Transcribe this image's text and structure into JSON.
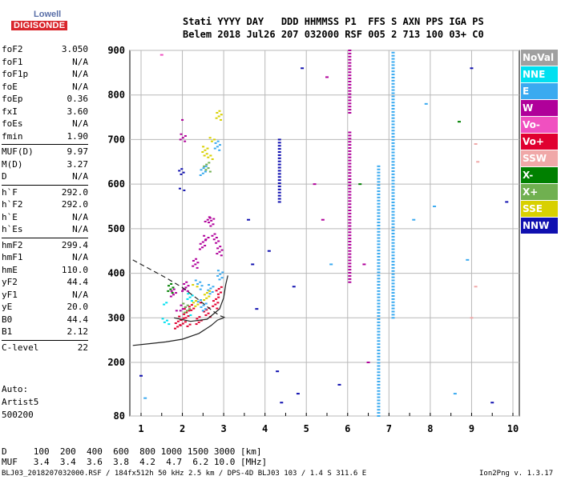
{
  "logo": {
    "line1": "Lowell",
    "line2": "DIGISONDE"
  },
  "header": {
    "line1": "Stati YYYY DAY   DDD HHMMSS P1  FFS S AXN PPS IGA PS",
    "line2": "Belem 2018 Jul26 207 032000 RSF 005 2 713 100 03+ C0"
  },
  "params_group1": [
    {
      "name": "foF2",
      "value": "3.050"
    },
    {
      "name": "foF1",
      "value": "N/A"
    },
    {
      "name": "foF1p",
      "value": "N/A"
    },
    {
      "name": "foE",
      "value": "N/A"
    },
    {
      "name": "foEp",
      "value": "0.36"
    },
    {
      "name": "fxI",
      "value": "3.60"
    },
    {
      "name": "foEs",
      "value": "N/A"
    },
    {
      "name": "fmin",
      "value": "1.90"
    }
  ],
  "params_group2": [
    {
      "name": "MUF(D)",
      "value": "9.97"
    },
    {
      "name": "M(D)",
      "value": "3.27"
    },
    {
      "name": "D",
      "value": "N/A"
    }
  ],
  "params_group3": [
    {
      "name": "h`F",
      "value": "292.0"
    },
    {
      "name": "h`F2",
      "value": "292.0"
    },
    {
      "name": "h`E",
      "value": "N/A"
    },
    {
      "name": "h`Es",
      "value": "N/A"
    }
  ],
  "params_group4": [
    {
      "name": "hmF2",
      "value": "299.4"
    },
    {
      "name": "hmF1",
      "value": "N/A"
    },
    {
      "name": "hmE",
      "value": "110.0"
    },
    {
      "name": "yF2",
      "value": "44.4"
    },
    {
      "name": "yF1",
      "value": "N/A"
    },
    {
      "name": "yE",
      "value": "20.0"
    },
    {
      "name": "B0",
      "value": "44.4"
    },
    {
      "name": "B1",
      "value": "2.12"
    }
  ],
  "params_group5": [
    {
      "name": "C-level",
      "value": "22"
    }
  ],
  "extra": {
    "auto": "Auto:",
    "artist": "Artist5",
    "version": "500200"
  },
  "legend": [
    {
      "label": "NoVal",
      "color": "#a0a0a0"
    },
    {
      "label": "NNE",
      "color": "#00e0f0"
    },
    {
      "label": "E",
      "color": "#3aaaf0"
    },
    {
      "label": "W",
      "color": "#b0009a"
    },
    {
      "label": "Vo-",
      "color": "#f050c0"
    },
    {
      "label": "Vo+",
      "color": "#e00030"
    },
    {
      "label": "SSW",
      "color": "#f0a8a8"
    },
    {
      "label": "X-",
      "color": "#008000"
    },
    {
      "label": "X+",
      "color": "#70b050"
    },
    {
      "label": "SSE",
      "color": "#d8d000"
    },
    {
      "label": "NNW",
      "color": "#1010b0"
    }
  ],
  "chart_data": {
    "type": "scatter",
    "title": "",
    "xlabel": "",
    "ylabel": "",
    "xlim": [
      0.8,
      10.0
    ],
    "ylim": [
      80,
      900
    ],
    "x_ticks": [
      "1",
      "2",
      "3",
      "4",
      "5",
      "6",
      "7",
      "8",
      "9",
      "10"
    ],
    "y_ticks": [
      "900",
      "800",
      "700",
      "600",
      "500",
      "400",
      "300",
      "200",
      "80"
    ],
    "grid": true,
    "trace_profile": {
      "name": "",
      "points": [
        [
          0.8,
          238
        ],
        [
          1.2,
          242
        ],
        [
          1.6,
          246
        ],
        [
          2.0,
          252
        ],
        [
          2.4,
          265
        ],
        [
          2.7,
          283
        ],
        [
          2.85,
          295
        ],
        [
          3.0,
          300
        ]
      ]
    },
    "trace_topside": {
      "name": "",
      "points": [
        [
          0.8,
          430
        ],
        [
          1.2,
          410
        ],
        [
          1.6,
          390
        ],
        [
          2.0,
          368
        ],
        [
          2.4,
          340
        ],
        [
          2.7,
          318
        ],
        [
          2.9,
          305
        ],
        [
          3.05,
          300
        ]
      ]
    },
    "trace_curve": {
      "name": "",
      "points": [
        [
          1.8,
          300
        ],
        [
          2.2,
          292
        ],
        [
          2.6,
          297
        ],
        [
          2.9,
          320
        ],
        [
          3.0,
          345
        ],
        [
          3.05,
          375
        ],
        [
          3.1,
          395
        ]
      ]
    },
    "f2_echoes": [
      {
        "x": 1.9,
        "y": 300,
        "c": "#e00030"
      },
      {
        "x": 2.0,
        "y": 295,
        "c": "#e00030"
      },
      {
        "x": 2.1,
        "y": 300,
        "c": "#e00030"
      },
      {
        "x": 2.2,
        "y": 305,
        "c": "#e00030"
      },
      {
        "x": 2.4,
        "y": 310,
        "c": "#e00030"
      },
      {
        "x": 2.6,
        "y": 318,
        "c": "#e00030"
      },
      {
        "x": 2.8,
        "y": 330,
        "c": "#e00030"
      },
      {
        "x": 2.9,
        "y": 345,
        "c": "#e00030"
      },
      {
        "x": 2.0,
        "y": 340,
        "c": "#b0009a"
      },
      {
        "x": 2.1,
        "y": 380,
        "c": "#b0009a"
      },
      {
        "x": 2.3,
        "y": 420,
        "c": "#b0009a"
      },
      {
        "x": 2.5,
        "y": 450,
        "c": "#b0009a"
      },
      {
        "x": 2.6,
        "y": 500,
        "c": "#b0009a"
      },
      {
        "x": 2.7,
        "y": 530,
        "c": "#b0009a"
      },
      {
        "x": 2.8,
        "y": 480,
        "c": "#b0009a"
      },
      {
        "x": 2.9,
        "y": 440,
        "c": "#b0009a"
      },
      {
        "x": 2.4,
        "y": 360,
        "c": "#3aaaf0"
      },
      {
        "x": 2.5,
        "y": 340,
        "c": "#3aaaf0"
      },
      {
        "x": 2.7,
        "y": 370,
        "c": "#3aaaf0"
      },
      {
        "x": 2.9,
        "y": 390,
        "c": "#3aaaf0"
      },
      {
        "x": 2.2,
        "y": 330,
        "c": "#00e0f0"
      },
      {
        "x": 2.3,
        "y": 350,
        "c": "#d8d000"
      },
      {
        "x": 2.6,
        "y": 360,
        "c": "#d8d000"
      },
      {
        "x": 2.1,
        "y": 320,
        "c": "#70b050"
      },
      {
        "x": 2.55,
        "y": 660,
        "c": "#d8d000"
      },
      {
        "x": 2.7,
        "y": 680,
        "c": "#d8d000"
      },
      {
        "x": 2.85,
        "y": 700,
        "c": "#3aaaf0"
      },
      {
        "x": 2.6,
        "y": 640,
        "c": "#70b050"
      },
      {
        "x": 2.5,
        "y": 620,
        "c": "#3aaaf0"
      },
      {
        "x": 2.0,
        "y": 610,
        "c": "#1010b0"
      },
      {
        "x": 2.0,
        "y": 720,
        "c": "#b0009a"
      },
      {
        "x": 2.9,
        "y": 760,
        "c": "#d8d000"
      },
      {
        "x": 1.7,
        "y": 360,
        "c": "#008000"
      },
      {
        "x": 1.8,
        "y": 340,
        "c": "#b0009a"
      },
      {
        "x": 1.6,
        "y": 310,
        "c": "#00e0f0"
      }
    ],
    "vertical_streaks": [
      {
        "x": 4.35,
        "y_from": 560,
        "y_to": 700,
        "c": "#1010b0"
      },
      {
        "x": 6.05,
        "y_from": 380,
        "y_to": 720,
        "c": "#b0009a"
      },
      {
        "x": 6.05,
        "y_from": 760,
        "y_to": 900,
        "c": "#b0009a"
      },
      {
        "x": 6.75,
        "y_from": 80,
        "y_to": 640,
        "c": "#3aaaf0"
      },
      {
        "x": 7.1,
        "y_from": 300,
        "y_to": 900,
        "c": "#3aaaf0"
      }
    ],
    "scattered": [
      {
        "x": 3.6,
        "y": 520,
        "c": "#1010b0"
      },
      {
        "x": 3.7,
        "y": 420,
        "c": "#1010b0"
      },
      {
        "x": 3.8,
        "y": 320,
        "c": "#1010b0"
      },
      {
        "x": 4.1,
        "y": 450,
        "c": "#1010b0"
      },
      {
        "x": 4.3,
        "y": 180,
        "c": "#1010b0"
      },
      {
        "x": 4.4,
        "y": 110,
        "c": "#1010b0"
      },
      {
        "x": 4.7,
        "y": 370,
        "c": "#1010b0"
      },
      {
        "x": 4.8,
        "y": 130,
        "c": "#1010b0"
      },
      {
        "x": 4.9,
        "y": 860,
        "c": "#1010b0"
      },
      {
        "x": 5.2,
        "y": 600,
        "c": "#b0009a"
      },
      {
        "x": 5.4,
        "y": 520,
        "c": "#b0009a"
      },
      {
        "x": 5.5,
        "y": 840,
        "c": "#b0009a"
      },
      {
        "x": 5.6,
        "y": 420,
        "c": "#3aaaf0"
      },
      {
        "x": 5.8,
        "y": 150,
        "c": "#1010b0"
      },
      {
        "x": 6.3,
        "y": 600,
        "c": "#008000"
      },
      {
        "x": 6.4,
        "y": 420,
        "c": "#b0009a"
      },
      {
        "x": 6.5,
        "y": 200,
        "c": "#b0009a"
      },
      {
        "x": 7.6,
        "y": 520,
        "c": "#3aaaf0"
      },
      {
        "x": 7.9,
        "y": 780,
        "c": "#3aaaf0"
      },
      {
        "x": 8.1,
        "y": 550,
        "c": "#3aaaf0"
      },
      {
        "x": 8.7,
        "y": 740,
        "c": "#008000"
      },
      {
        "x": 8.9,
        "y": 430,
        "c": "#3aaaf0"
      },
      {
        "x": 9.1,
        "y": 690,
        "c": "#f0a8a8"
      },
      {
        "x": 9.15,
        "y": 650,
        "c": "#f0a8a8"
      },
      {
        "x": 9.0,
        "y": 300,
        "c": "#f0a8a8"
      },
      {
        "x": 9.1,
        "y": 370,
        "c": "#f0a8a8"
      },
      {
        "x": 9.5,
        "y": 110,
        "c": "#1010b0"
      },
      {
        "x": 9.85,
        "y": 560,
        "c": "#1010b0"
      },
      {
        "x": 9.0,
        "y": 860,
        "c": "#1010b0"
      },
      {
        "x": 8.6,
        "y": 130,
        "c": "#3aaaf0"
      },
      {
        "x": 1.5,
        "y": 890,
        "c": "#f050c0"
      },
      {
        "x": 1.0,
        "y": 170,
        "c": "#1010b0"
      },
      {
        "x": 1.1,
        "y": 120,
        "c": "#3aaaf0"
      }
    ]
  },
  "bottom": {
    "d_row": "D     100  200  400  600  800 1000 1500 3000 [km]",
    "muf_row": "MUF   3.4  3.4  3.6  3.8  4.2  4.7  6.2 10.0 [MHz]"
  },
  "footer": {
    "left": "BLJ03_2018207032000.RSF / 184fx512h 50 kHz 2.5 km / DPS-4D BLJ03 103 / 1.4 S 311.6 E",
    "right": "Ion2Png v. 1.3.17"
  }
}
